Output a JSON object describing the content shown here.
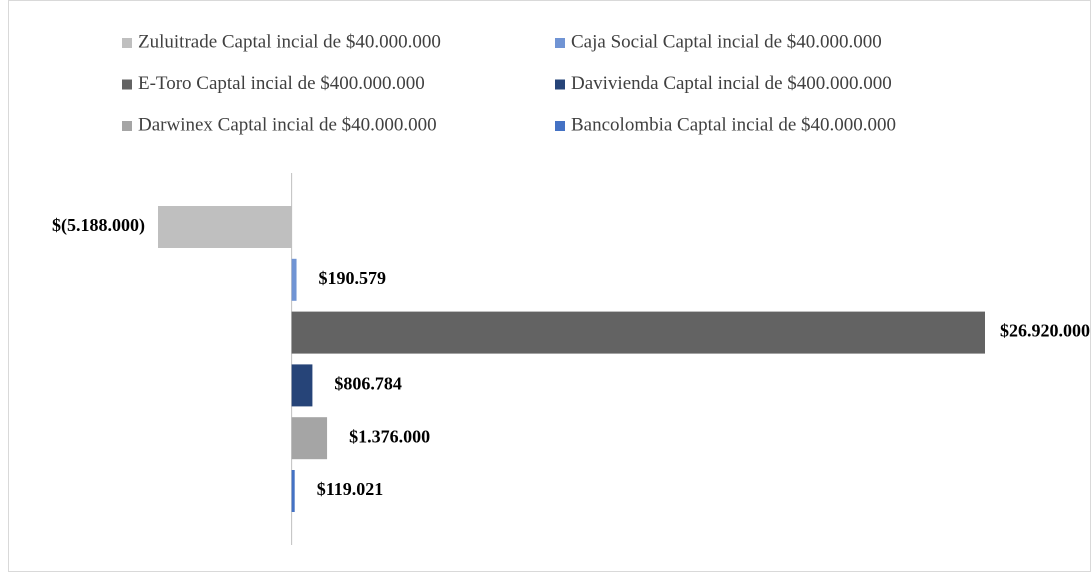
{
  "chart_data": {
    "type": "bar",
    "orientation": "horizontal",
    "legend": "top",
    "series": [
      {
        "name": "Zuluitrade Captal incial de $40.000.000",
        "color": "#bfbfbf",
        "values": [
          -5188000
        ],
        "value_labels": [
          "$(5.188.000)"
        ]
      },
      {
        "name": "Caja Social  Captal incial de $40.000.000",
        "color": "#7094d4",
        "values": [
          190579
        ],
        "value_labels": [
          "$190.579"
        ]
      },
      {
        "name": "E-Toro Captal incial de $400.000.000",
        "color": "#636363",
        "values": [
          26920000
        ],
        "value_labels": [
          "$26.920.000"
        ]
      },
      {
        "name": "Davivienda Captal incial de $400.000.000",
        "color": "#264478",
        "values": [
          806784
        ],
        "value_labels": [
          "$806.784"
        ]
      },
      {
        "name": "Darwinex Captal incial de $40.000.000",
        "color": "#a5a5a5",
        "values": [
          1376000
        ],
        "value_labels": [
          "$1.376.000"
        ]
      },
      {
        "name": "Bancolombia Captal incial de $40.000.000",
        "color": "#4472c4",
        "values": [
          119021
        ],
        "value_labels": [
          "$119.021"
        ]
      }
    ]
  }
}
